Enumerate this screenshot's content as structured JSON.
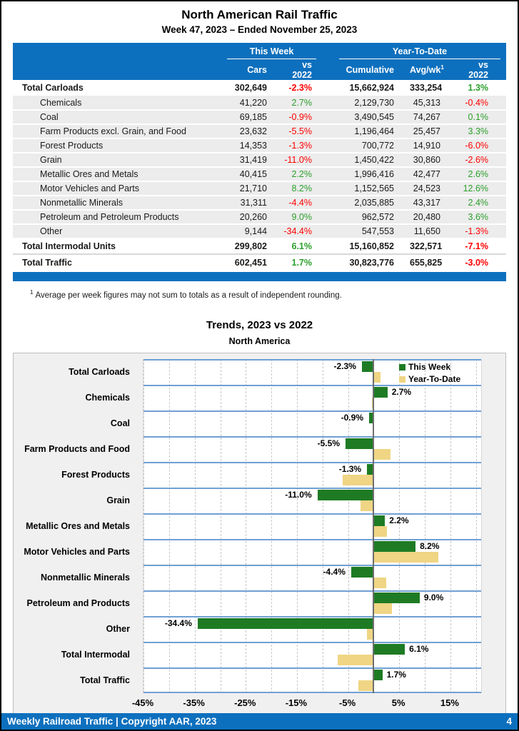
{
  "page": {
    "title": "North American Rail Traffic",
    "subtitle": "Week 47, 2023 – Ended November 25, 2023",
    "footnote_sup": "1",
    "footnote": "Average per week figures may not sum to totals as a result of independent rounding.",
    "footer_left": "Weekly Railroad Traffic | Copyright AAR, 2023",
    "footer_page": "4"
  },
  "colors": {
    "header_blue": "#0D70BE",
    "negative_red": "#FF0000",
    "positive_green": "#2B9F2B",
    "row_gray": "#ECECEC",
    "separator_blue": "#6FA0D4",
    "this_week_green": "#1E7B24",
    "ytd_tan": "#EFD584"
  },
  "table": {
    "group_headers": {
      "this_week": "This Week",
      "ytd": "Year-To-Date"
    },
    "columns": [
      "Cars",
      "vs 2022",
      "Cumulative",
      "Avg/wk",
      "vs 2022"
    ],
    "avgwk_sup": "1",
    "rows": [
      {
        "type": "total",
        "label": "Total Carloads",
        "cars": "302,649",
        "tw": "-2.3%",
        "cum": "15,662,924",
        "avg": "333,254",
        "ytd": "1.3%"
      },
      {
        "type": "cat",
        "label": "Chemicals",
        "cars": "41,220",
        "tw": "2.7%",
        "cum": "2,129,730",
        "avg": "45,313",
        "ytd": "-0.4%"
      },
      {
        "type": "cat",
        "label": "Coal",
        "cars": "69,185",
        "tw": "-0.9%",
        "cum": "3,490,545",
        "avg": "74,267",
        "ytd": "0.1%"
      },
      {
        "type": "cat",
        "label": "Farm Products excl. Grain, and Food",
        "cars": "23,632",
        "tw": "-5.5%",
        "cum": "1,196,464",
        "avg": "25,457",
        "ytd": "3.3%"
      },
      {
        "type": "cat",
        "label": "Forest Products",
        "cars": "14,353",
        "tw": "-1.3%",
        "cum": "700,772",
        "avg": "14,910",
        "ytd": "-6.0%"
      },
      {
        "type": "cat",
        "label": "Grain",
        "cars": "31,419",
        "tw": "-11.0%",
        "cum": "1,450,422",
        "avg": "30,860",
        "ytd": "-2.6%"
      },
      {
        "type": "cat",
        "label": "Metallic Ores and Metals",
        "cars": "40,415",
        "tw": "2.2%",
        "cum": "1,996,416",
        "avg": "42,477",
        "ytd": "2.6%"
      },
      {
        "type": "cat",
        "label": "Motor Vehicles and Parts",
        "cars": "21,710",
        "tw": "8.2%",
        "cum": "1,152,565",
        "avg": "24,523",
        "ytd": "12.6%"
      },
      {
        "type": "cat",
        "label": "Nonmetallic Minerals",
        "cars": "31,311",
        "tw": "-4.4%",
        "cum": "2,035,885",
        "avg": "43,317",
        "ytd": "2.4%"
      },
      {
        "type": "cat",
        "label": "Petroleum and Petroleum Products",
        "cars": "20,260",
        "tw": "9.0%",
        "cum": "962,572",
        "avg": "20,480",
        "ytd": "3.6%"
      },
      {
        "type": "cat",
        "label": "Other",
        "cars": "9,144",
        "tw": "-34.4%",
        "cum": "547,553",
        "avg": "11,650",
        "ytd": "-1.3%"
      },
      {
        "type": "total",
        "label": "Total Intermodal Units",
        "cars": "299,802",
        "tw": "6.1%",
        "cum": "15,160,852",
        "avg": "322,571",
        "ytd": "-7.1%"
      },
      {
        "type": "total",
        "label": "Total Traffic",
        "cars": "602,451",
        "tw": "1.7%",
        "cum": "30,823,776",
        "avg": "655,825",
        "ytd": "-3.0%"
      }
    ]
  },
  "chart_data": {
    "type": "bar",
    "orientation": "horizontal",
    "title": "Trends, 2023 vs 2022",
    "subtitle": "North America",
    "categories": [
      "Total Carloads",
      "Chemicals",
      "Coal",
      "Farm Products and Food",
      "Forest Products",
      "Grain",
      "Metallic Ores and Metals",
      "Motor Vehicles and Parts",
      "Nonmetallic Minerals",
      "Petroleum and Products",
      "Other",
      "Total Intermodal",
      "Total Traffic"
    ],
    "series": [
      {
        "name": "This Week",
        "color": "#1E7B24",
        "values": [
          -2.3,
          2.7,
          -0.9,
          -5.5,
          -1.3,
          -11.0,
          2.2,
          8.2,
          -4.4,
          9.0,
          -34.4,
          6.1,
          1.7
        ]
      },
      {
        "name": "Year-To-Date",
        "color": "#EFD584",
        "values": [
          1.3,
          -0.4,
          0.1,
          3.3,
          -6.0,
          -2.6,
          2.6,
          12.6,
          2.4,
          3.6,
          -1.3,
          -7.1,
          -3.0
        ]
      }
    ],
    "bar_labels": [
      "-2.3%",
      "2.7%",
      "-0.9%",
      "-5.5%",
      "-1.3%",
      "-11.0%",
      "2.2%",
      "8.2%",
      "-4.4%",
      "9.0%",
      "-34.4%",
      "6.1%",
      "1.7%"
    ],
    "xlim": [
      -45,
      21.3
    ],
    "x_ticks": [
      -45,
      -35,
      -25,
      -15,
      -5,
      5,
      15
    ],
    "x_tick_labels": [
      "-45%",
      "-35%",
      "-25%",
      "-15%",
      "-5%",
      "5%",
      "15%"
    ],
    "gridline_step": 5,
    "grid": true,
    "legend_position": "top-right"
  }
}
